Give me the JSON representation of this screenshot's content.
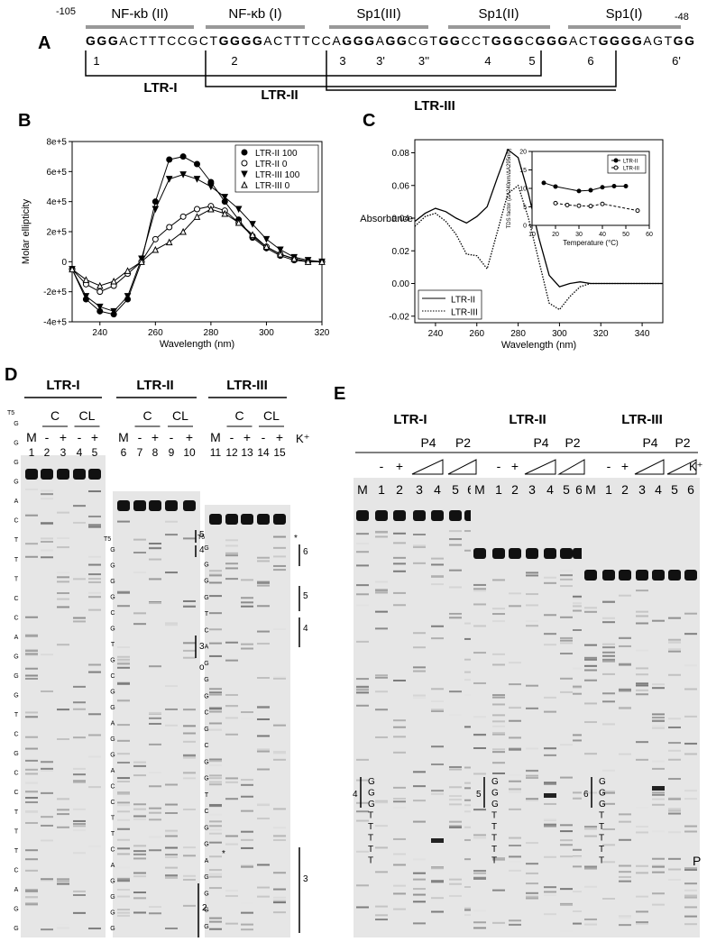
{
  "panel_labels": [
    "A",
    "B",
    "C",
    "D",
    "E"
  ],
  "panel_a": {
    "start": "-105",
    "end": "-48",
    "regions": [
      "NF-κb (II)",
      "NF-κb (I)",
      "Sp1(III)",
      "Sp1(II)",
      "Sp1(I)"
    ],
    "sequence": [
      {
        "text": "GGG",
        "bold": true
      },
      {
        "text": "ACTTTCCGCT",
        "bold": false
      },
      {
        "text": "GGGG",
        "bold": true
      },
      {
        "text": "ACTTTCCA",
        "bold": false
      },
      {
        "text": "GGG",
        "bold": true
      },
      {
        "text": "A",
        "bold": false
      },
      {
        "text": "GG",
        "bold": true
      },
      {
        "text": "CGT",
        "bold": false
      },
      {
        "text": "GG",
        "bold": true
      },
      {
        "text": "CCT",
        "bold": false
      },
      {
        "text": "GGG",
        "bold": true
      },
      {
        "text": "C",
        "bold": false
      },
      {
        "text": "GGG",
        "bold": true
      },
      {
        "text": "ACT",
        "bold": false
      },
      {
        "text": "GGGG",
        "bold": true
      },
      {
        "text": "AGT",
        "bold": false
      },
      {
        "text": "GG",
        "bold": true
      }
    ],
    "tracts": [
      "1",
      "2",
      "3",
      "3'",
      "3''",
      "4",
      "5",
      "6",
      "6'"
    ],
    "constructs": [
      "LTR-I",
      "LTR-II",
      "LTR-III"
    ]
  },
  "chart_data": [
    {
      "type": "line",
      "x_label": "Wavelength (nm)",
      "y_label": "Molar ellipticity",
      "x": [
        230,
        235,
        240,
        245,
        250,
        255,
        260,
        265,
        270,
        275,
        280,
        285,
        290,
        295,
        300,
        305,
        310,
        315,
        320
      ],
      "xlim": [
        230,
        320
      ],
      "xticks": [
        240,
        260,
        280,
        300,
        320
      ],
      "ylim": [
        -400000,
        800000
      ],
      "yticks": [
        {
          "value": -400000,
          "label": "-4e+5"
        },
        {
          "value": -200000,
          "label": "-2e+5"
        },
        0,
        {
          "value": 200000,
          "label": "2e+5"
        },
        {
          "value": 400000,
          "label": "4e+5"
        },
        {
          "value": 600000,
          "label": "6e+5"
        },
        {
          "value": 800000,
          "label": "8e+5"
        }
      ],
      "legend": "upper right",
      "series": [
        {
          "name": "LTR-II 100",
          "color": "#000000",
          "marker": "circle",
          "filled": true,
          "values": [
            -50000,
            -250000,
            -330000,
            -350000,
            -250000,
            0,
            400000,
            680000,
            700000,
            650000,
            530000,
            400000,
            280000,
            160000,
            90000,
            40000,
            10000,
            0,
            0
          ]
        },
        {
          "name": "LTR-II 0",
          "color": "#000000",
          "marker": "circle",
          "filled": false,
          "values": [
            -50000,
            -150000,
            -200000,
            -160000,
            -80000,
            0,
            150000,
            230000,
            300000,
            350000,
            370000,
            340000,
            260000,
            170000,
            100000,
            50000,
            20000,
            0,
            0
          ]
        },
        {
          "name": "LTR-III 100",
          "color": "#000000",
          "marker": "triangle-down",
          "filled": true,
          "values": [
            -50000,
            -230000,
            -300000,
            -330000,
            -230000,
            20000,
            350000,
            550000,
            580000,
            550000,
            500000,
            430000,
            350000,
            250000,
            150000,
            80000,
            30000,
            10000,
            0
          ]
        },
        {
          "name": "LTR-III 0",
          "color": "#000000",
          "marker": "triangle-up",
          "filled": false,
          "values": [
            -50000,
            -120000,
            -160000,
            -130000,
            -60000,
            0,
            80000,
            130000,
            200000,
            300000,
            350000,
            320000,
            260000,
            180000,
            100000,
            50000,
            20000,
            0,
            0
          ]
        }
      ]
    },
    {
      "type": "line",
      "x_label": "Wavelength (nm)",
      "y_label": "Absorbance",
      "x": [
        230,
        235,
        240,
        245,
        250,
        255,
        260,
        265,
        270,
        275,
        280,
        285,
        290,
        295,
        300,
        305,
        310,
        315,
        320,
        325,
        330,
        335,
        340,
        345,
        350
      ],
      "xlim": [
        230,
        350
      ],
      "xticks": [
        240,
        260,
        280,
        300,
        320,
        340
      ],
      "ylim": [
        -0.024,
        0.088
      ],
      "yticks": [
        -0.02,
        {
          "value": 0,
          "label": "0.00"
        },
        0.02,
        0.04,
        0.06,
        0.08
      ],
      "legend": "lower left",
      "series": [
        {
          "name": "LTR-II",
          "color": "#000000",
          "dash": "solid",
          "values": [
            0.038,
            0.043,
            0.046,
            0.044,
            0.04,
            0.037,
            0.041,
            0.047,
            0.065,
            0.082,
            0.077,
            0.055,
            0.028,
            0.005,
            -0.002,
            0,
            0.001,
            0,
            0,
            0,
            0,
            0,
            0,
            0,
            0
          ]
        },
        {
          "name": "LTR-III",
          "color": "#000000",
          "dash": "dotted",
          "values": [
            0.035,
            0.041,
            0.043,
            0.038,
            0.03,
            0.018,
            0.017,
            0.009,
            0.032,
            0.055,
            0.06,
            0.04,
            0.014,
            -0.012,
            -0.016,
            -0.008,
            -0.002,
            0,
            0,
            0,
            0,
            0,
            0,
            0,
            0
          ]
        }
      ]
    },
    {
      "type": "line",
      "x_label": "Temperature (°C)",
      "y_label": "TDS factor (ΔA240nm/ΔA295nm)",
      "xlim": [
        10,
        60
      ],
      "xticks": [
        10,
        20,
        30,
        40,
        50,
        60
      ],
      "ylim": [
        0,
        20
      ],
      "yticks": [
        0,
        5,
        10,
        15,
        20
      ],
      "legend": "upper right",
      "series": [
        {
          "name": "LTR-II",
          "color": "#000000",
          "marker": "circle",
          "filled": true,
          "dash": "solid",
          "x": [
            15,
            20,
            30,
            35,
            40,
            45,
            50
          ],
          "values": [
            11.5,
            10.5,
            9.3,
            9.5,
            10.3,
            10.6,
            10.6
          ]
        },
        {
          "name": "LTR-III",
          "color": "#000000",
          "marker": "circle",
          "filled": false,
          "dash": "dashed",
          "x": [
            20,
            25,
            30,
            35,
            40,
            55
          ],
          "values": [
            6,
            5.5,
            5.3,
            5.2,
            5.8,
            4
          ]
        }
      ]
    }
  ],
  "panel_d": {
    "k_label": "K⁺",
    "groups": [
      {
        "name": "LTR-I",
        "conditions": [
          "C",
          "CL"
        ],
        "signs": [
          "M",
          "-",
          "+",
          "-",
          "+"
        ],
        "lanes": [
          "1",
          "2",
          "3",
          "4",
          "5"
        ],
        "ladder_top": "T5",
        "ladder": [
          "G",
          "G",
          "G",
          "G",
          "A",
          "C",
          "T",
          "T",
          "T",
          "C",
          "C",
          "A",
          "G",
          "G",
          "G",
          "T",
          "C",
          "G",
          "C",
          "C",
          "T",
          "T",
          "T",
          "C",
          "A",
          "G",
          "G"
        ],
        "marks": []
      },
      {
        "name": "LTR-II",
        "conditions": [
          "C",
          "CL"
        ],
        "signs": [
          "M",
          "-",
          "+",
          "-",
          "+"
        ],
        "lanes": [
          "6",
          "7",
          "8",
          "9",
          "10"
        ],
        "ladder_top": "T5",
        "ladder": [
          "G",
          "G",
          "G",
          "G",
          "C",
          "G",
          "T",
          "G",
          "C",
          "G",
          "G",
          "A",
          "G",
          "G",
          "A",
          "C",
          "C",
          "T",
          "T",
          "C",
          "A",
          "G",
          "G",
          "G",
          "G"
        ],
        "marks": [
          "5",
          "4",
          "3",
          "o",
          "*",
          "2"
        ]
      },
      {
        "name": "LTR-III",
        "conditions": [
          "C",
          "CL"
        ],
        "signs": [
          "M",
          "-",
          "+",
          "-",
          "+"
        ],
        "lanes": [
          "11",
          "12",
          "13",
          "14",
          "15"
        ],
        "ladder_top": "T5",
        "ladder": [
          "G",
          "G",
          "G",
          "G",
          "T",
          "C",
          "A",
          "G",
          "G",
          "G",
          "C",
          "G",
          "C",
          "G",
          "G",
          "T",
          "C",
          "G",
          "G",
          "A",
          "G",
          "G",
          "G",
          "G"
        ],
        "marks": [
          "*",
          "6",
          "5",
          "4",
          "3"
        ]
      }
    ]
  },
  "panel_e": {
    "k_label": "K⁺",
    "product": "P",
    "groups": [
      {
        "name": "LTR-I",
        "primers": [
          "P4",
          "P2"
        ],
        "signs": [
          "-",
          "+"
        ],
        "lanes": [
          "M",
          "1",
          "2",
          "3",
          "4",
          "5",
          "6"
        ],
        "tract": "4",
        "ladder": [
          "G",
          "G",
          "G",
          "T",
          "T",
          "T",
          "T",
          "T"
        ]
      },
      {
        "name": "LTR-II",
        "primers": [
          "P4",
          "P2"
        ],
        "signs": [
          "-",
          "+"
        ],
        "lanes": [
          "M",
          "1",
          "2",
          "3",
          "4",
          "5",
          "6"
        ],
        "tract": "5",
        "ladder": [
          "G",
          "G",
          "G",
          "T",
          "T",
          "T",
          "T",
          "T"
        ]
      },
      {
        "name": "LTR-III",
        "primers": [
          "P4",
          "P2"
        ],
        "signs": [
          "-",
          "+"
        ],
        "lanes": [
          "M",
          "1",
          "2",
          "3",
          "4",
          "5",
          "6"
        ],
        "tract": "6",
        "ladder": [
          "G",
          "G",
          "G",
          "T",
          "T",
          "T",
          "T",
          "T"
        ]
      }
    ]
  }
}
